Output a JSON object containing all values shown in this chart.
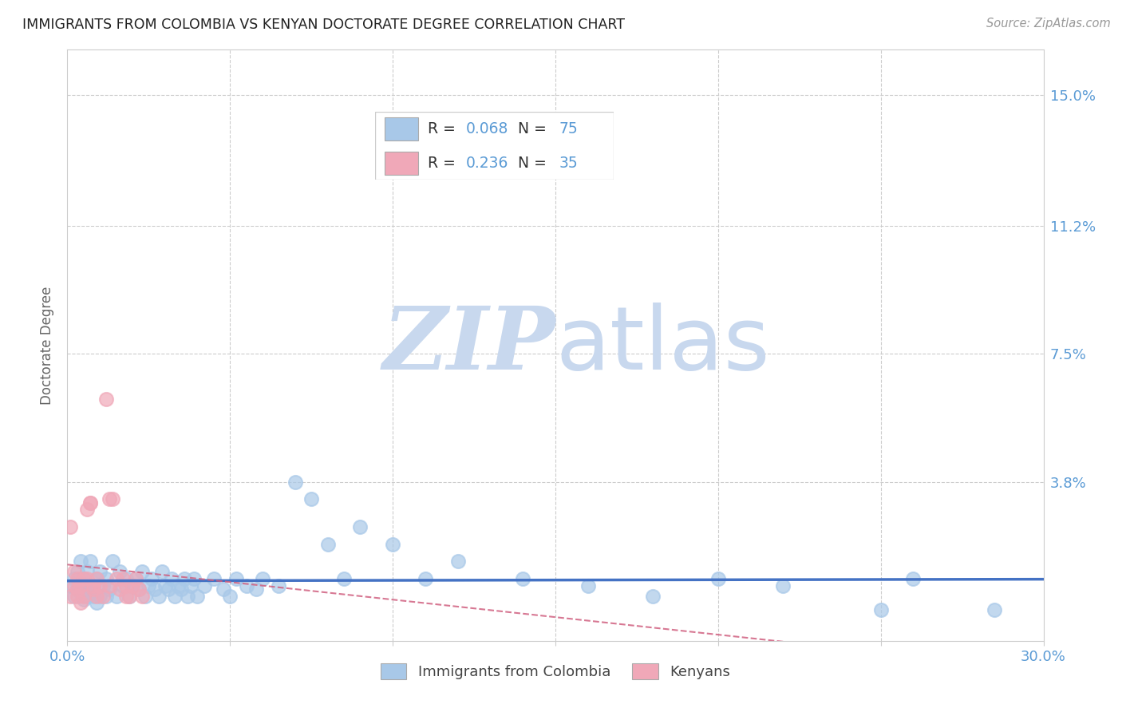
{
  "title": "IMMIGRANTS FROM COLOMBIA VS KENYAN DOCTORATE DEGREE CORRELATION CHART",
  "source": "Source: ZipAtlas.com",
  "ylabel": "Doctorate Degree",
  "yticks": [
    "15.0%",
    "11.2%",
    "7.5%",
    "3.8%"
  ],
  "ytick_vals": [
    0.15,
    0.112,
    0.075,
    0.038
  ],
  "xlim": [
    0.0,
    0.3
  ],
  "ylim": [
    -0.008,
    0.163
  ],
  "color_blue": "#a8c8e8",
  "color_pink": "#f0a8b8",
  "trendline_blue_color": "#4472c4",
  "trendline_pink_color": "#d06080",
  "axis_label_color": "#5b9bd5",
  "watermark_zip": "#c8d8ee",
  "watermark_atlas": "#c8d8ee",
  "colombia_x": [
    0.001,
    0.002,
    0.002,
    0.003,
    0.003,
    0.004,
    0.004,
    0.005,
    0.005,
    0.005,
    0.006,
    0.006,
    0.007,
    0.007,
    0.008,
    0.008,
    0.009,
    0.009,
    0.01,
    0.01,
    0.011,
    0.012,
    0.012,
    0.013,
    0.014,
    0.015,
    0.016,
    0.017,
    0.018,
    0.019,
    0.02,
    0.021,
    0.022,
    0.023,
    0.024,
    0.025,
    0.026,
    0.027,
    0.028,
    0.029,
    0.03,
    0.031,
    0.032,
    0.033,
    0.034,
    0.035,
    0.036,
    0.037,
    0.038,
    0.039,
    0.04,
    0.042,
    0.045,
    0.048,
    0.05,
    0.052,
    0.055,
    0.058,
    0.06,
    0.065,
    0.07,
    0.075,
    0.08,
    0.085,
    0.09,
    0.1,
    0.11,
    0.12,
    0.14,
    0.16,
    0.18,
    0.2,
    0.22,
    0.25,
    0.26,
    0.285
  ],
  "colombia_y": [
    0.008,
    0.005,
    0.01,
    0.007,
    0.012,
    0.006,
    0.015,
    0.008,
    0.004,
    0.01,
    0.005,
    0.012,
    0.007,
    0.015,
    0.005,
    0.008,
    0.003,
    0.01,
    0.005,
    0.012,
    0.008,
    0.005,
    0.01,
    0.007,
    0.015,
    0.005,
    0.012,
    0.008,
    0.01,
    0.005,
    0.008,
    0.01,
    0.007,
    0.012,
    0.005,
    0.008,
    0.01,
    0.007,
    0.005,
    0.012,
    0.008,
    0.007,
    0.01,
    0.005,
    0.008,
    0.007,
    0.01,
    0.005,
    0.008,
    0.01,
    0.005,
    0.008,
    0.01,
    0.007,
    0.005,
    0.01,
    0.008,
    0.007,
    0.01,
    0.008,
    0.038,
    0.033,
    0.02,
    0.01,
    0.025,
    0.02,
    0.01,
    0.015,
    0.01,
    0.008,
    0.005,
    0.01,
    0.008,
    0.001,
    0.01,
    0.001
  ],
  "kenya_x": [
    0.001,
    0.001,
    0.002,
    0.002,
    0.003,
    0.003,
    0.003,
    0.004,
    0.004,
    0.005,
    0.005,
    0.006,
    0.006,
    0.007,
    0.007,
    0.008,
    0.008,
    0.009,
    0.009,
    0.01,
    0.011,
    0.012,
    0.013,
    0.013,
    0.014,
    0.015,
    0.016,
    0.017,
    0.018,
    0.018,
    0.019,
    0.02,
    0.021,
    0.022,
    0.023
  ],
  "kenya_y": [
    0.025,
    0.005,
    0.008,
    0.012,
    0.01,
    0.005,
    0.007,
    0.008,
    0.003,
    0.01,
    0.005,
    0.03,
    0.01,
    0.032,
    0.032,
    0.008,
    0.007,
    0.01,
    0.005,
    0.008,
    0.005,
    0.062,
    0.008,
    0.033,
    0.033,
    0.01,
    0.007,
    0.01,
    0.005,
    0.008,
    0.005,
    0.008,
    0.01,
    0.007,
    0.005
  ],
  "xtick_positions": [
    0.0,
    0.05,
    0.1,
    0.15,
    0.2,
    0.25,
    0.3
  ]
}
